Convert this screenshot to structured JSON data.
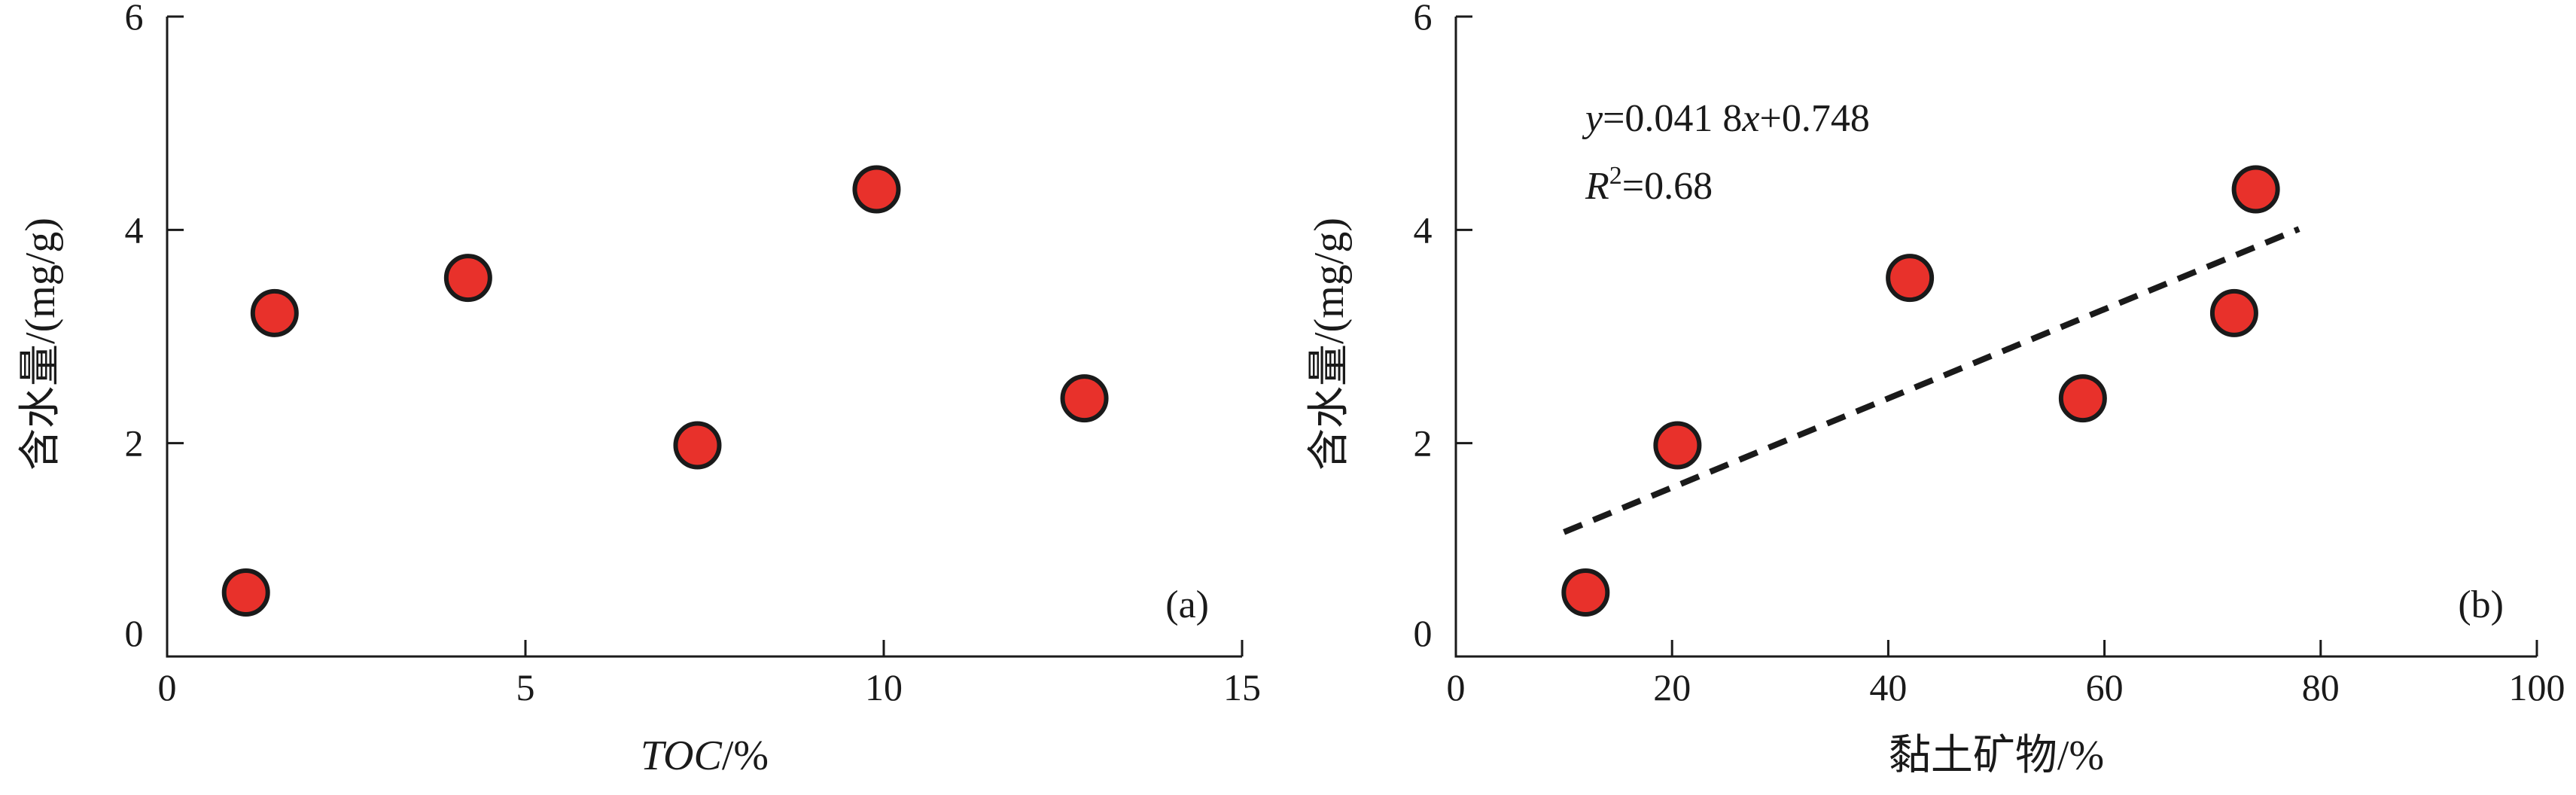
{
  "chart_data": [
    {
      "type": "scatter",
      "panel_label": "(a)",
      "xlabel_italic": "TOC",
      "xlabel_rest": "/%",
      "ylabel": "含水量/(mg/g)",
      "xlim": [
        0,
        15
      ],
      "ylim": [
        0,
        6
      ],
      "xticks": [
        0,
        5,
        10,
        15
      ],
      "yticks": [
        0,
        2,
        4,
        6
      ],
      "grid": false,
      "marker_color": "#e8312b",
      "points": [
        {
          "x": 1.1,
          "y": 0.6
        },
        {
          "x": 1.5,
          "y": 3.22
        },
        {
          "x": 4.2,
          "y": 3.55
        },
        {
          "x": 7.4,
          "y": 1.98
        },
        {
          "x": 9.9,
          "y": 4.38
        },
        {
          "x": 12.8,
          "y": 2.42
        }
      ]
    },
    {
      "type": "scatter",
      "panel_label": "(b)",
      "xlabel": "黏土矿物/%",
      "ylabel": "含水量/(mg/g)",
      "xlim": [
        0,
        100
      ],
      "ylim": [
        0,
        6
      ],
      "xticks": [
        0,
        20,
        40,
        60,
        80,
        100
      ],
      "yticks": [
        0,
        2,
        4,
        6
      ],
      "grid": false,
      "marker_color": "#e8312b",
      "points": [
        {
          "x": 12,
          "y": 0.6
        },
        {
          "x": 20.5,
          "y": 1.98
        },
        {
          "x": 42,
          "y": 3.55
        },
        {
          "x": 58,
          "y": 2.42
        },
        {
          "x": 72,
          "y": 3.22
        },
        {
          "x": 74,
          "y": 4.38
        }
      ],
      "trendline": {
        "slope": 0.0418,
        "intercept": 0.748,
        "x_start": 10,
        "x_end": 78,
        "style": "dashed"
      },
      "equation": {
        "line1": {
          "y_var": "y",
          "eq_sign": "=",
          "coef": "0.041 8",
          "x_var": "x",
          "plus": "+",
          "intercept": "0.748"
        },
        "line2": {
          "r_var": "R",
          "r_sup": "2",
          "eq_sign": "=",
          "value": "0.68"
        }
      }
    }
  ]
}
